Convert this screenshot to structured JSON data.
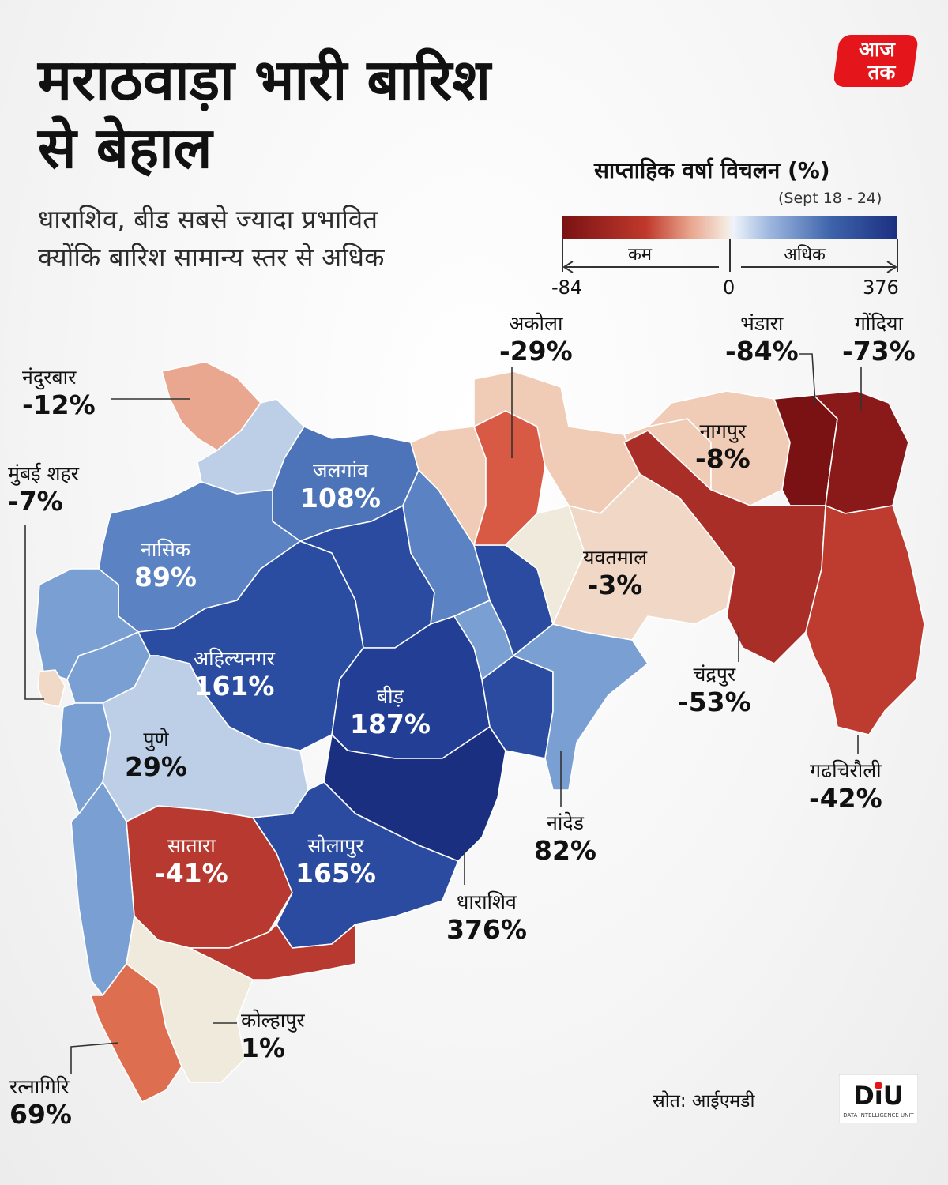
{
  "header": {
    "title_line1": "मराठवाड़ा भारी बारिश",
    "title_line2": "से बेहाल",
    "subtitle_line1": "धाराशिव, बीड सबसे ज्यादा प्रभावित",
    "subtitle_line2": "क्योंकि बारिश सामान्य स्तर से अधिक"
  },
  "logo": {
    "text_top": "आज",
    "text_bottom": "तक",
    "color": "#e5161b"
  },
  "legend": {
    "title": "साप्ताहिक वर्षा विचलन (%)",
    "period": "(Sept 18 - 24)",
    "less": "कम",
    "more": "अधिक",
    "min": "-84",
    "mid": "0",
    "max": "376"
  },
  "districts": {
    "nandurbar": {
      "name": "नंदुरबार",
      "value": "-12%",
      "color": "#eaa78f"
    },
    "mumbai": {
      "name": "मुंबई शहर",
      "value": "-7%",
      "color": "#f1d9c8"
    },
    "jalgaon": {
      "name": "जलगांव",
      "value": "108%",
      "color": "#4d74b8"
    },
    "nashik": {
      "name": "नासिक",
      "value": "89%",
      "color": "#5b82c2"
    },
    "ahilyanagar": {
      "name": "अहिल्यनगर",
      "value": "161%",
      "color": "#2b4da1"
    },
    "beed": {
      "name": "बीड़",
      "value": "187%",
      "color": "#223f95"
    },
    "pune": {
      "name": "पुणे",
      "value": "29%",
      "color": "#bccfe7"
    },
    "satara": {
      "name": "सातारा",
      "value": "-41%",
      "color": "#b8392f"
    },
    "solapur": {
      "name": "सोलापुर",
      "value": "165%",
      "color": "#2a4b9f"
    },
    "dharashiv": {
      "name": "धाराशिव",
      "value": "376%",
      "color": "#1b2f80"
    },
    "nanded": {
      "name": "नांदेड",
      "value": "82%",
      "color": "#7a9fd3"
    },
    "kolhapur": {
      "name": "कोल्हापुर",
      "value": "1%",
      "color": "#efeadb"
    },
    "ratnagiri": {
      "name": "रत्नागिरि",
      "value": "69%",
      "color": "#de6e50"
    },
    "akola": {
      "name": "अकोला",
      "value": "-29%",
      "color": "#d85a45"
    },
    "yavatmal": {
      "name": "यवतमाल",
      "value": "-3%",
      "color": "#f1d7c6"
    },
    "nagpur": {
      "name": "नागपुर",
      "value": "-8%",
      "color": "#f0cbb6"
    },
    "bhandara": {
      "name": "भंडारा",
      "value": "-84%",
      "color": "#7a1213"
    },
    "gondia": {
      "name": "गोंदिया",
      "value": "-73%",
      "color": "#8a1a1a"
    },
    "chandrapur": {
      "name": "चंद्रपुर",
      "value": "-53%",
      "color": "#a92e27"
    },
    "gadchiroli": {
      "name": "गढचिरौली",
      "value": "-42%",
      "color": "#bd3b2f"
    }
  },
  "source": "स्रोत: आईएमडी",
  "diu": {
    "text": "DiU",
    "tagline": "DATA INTELLIGENCE UNIT"
  }
}
